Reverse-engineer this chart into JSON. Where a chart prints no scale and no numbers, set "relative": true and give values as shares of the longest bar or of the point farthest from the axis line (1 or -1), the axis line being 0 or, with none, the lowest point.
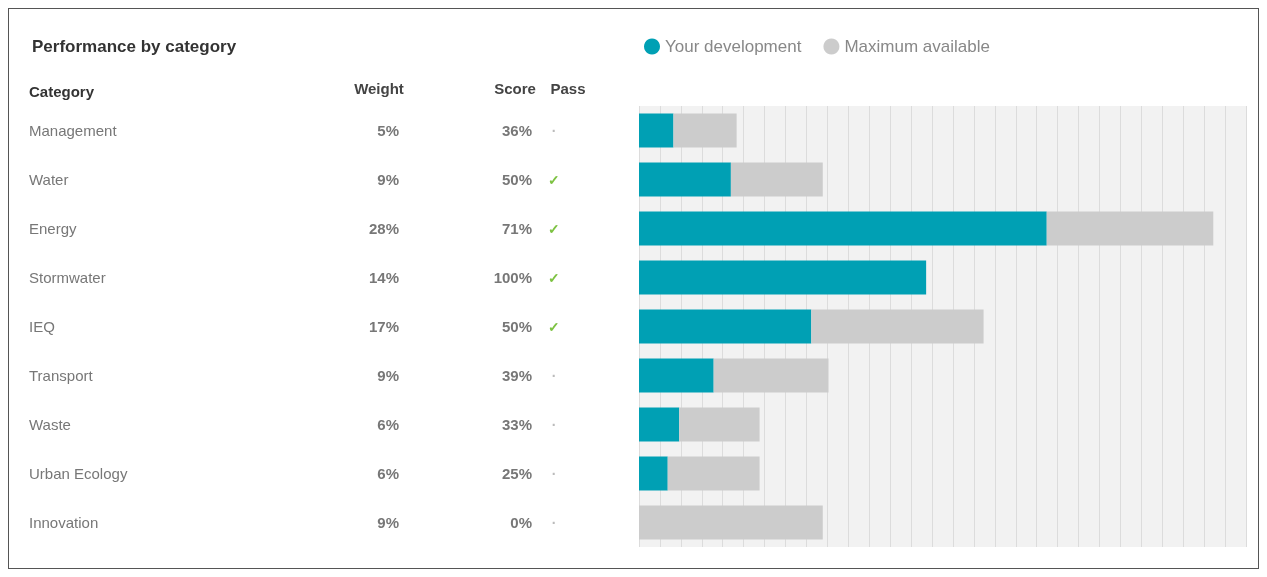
{
  "chart_data": {
    "type": "bar",
    "orientation": "horizontal",
    "stacked": true,
    "relative": true,
    "title": "Performance by category",
    "ylabel": "Category",
    "categories": [
      "Management",
      "Water",
      "Energy",
      "Stormwater",
      "IEQ",
      "Transport",
      "Waste",
      "Urban Ecology",
      "Innovation"
    ],
    "series": [
      {
        "name": "Your development",
        "color": "#00a0b4",
        "values": [
          0.06,
          0.16,
          0.71,
          0.5,
          0.3,
          0.13,
          0.07,
          0.05,
          0
        ]
      },
      {
        "name": "Maximum available",
        "color": "#cccccc",
        "values": [
          0.11,
          0.16,
          0.29,
          0,
          0.3,
          0.2,
          0.14,
          0.16,
          0.32
        ]
      }
    ],
    "annotations": [
      "Weight",
      "Score",
      "Pass",
      "5%",
      "9%",
      "28%",
      "14%",
      "17%",
      "9%",
      "6%",
      "6%",
      "9%",
      "36%",
      "50%",
      "71%",
      "100%",
      "50%",
      "39%",
      "33%",
      "25%",
      "0%",
      "·",
      "✓",
      "✓",
      "✓",
      "✓",
      "·",
      "·",
      "·",
      "·"
    ],
    "tick_labels": "y",
    "grid": "x",
    "legend": "top"
  }
}
